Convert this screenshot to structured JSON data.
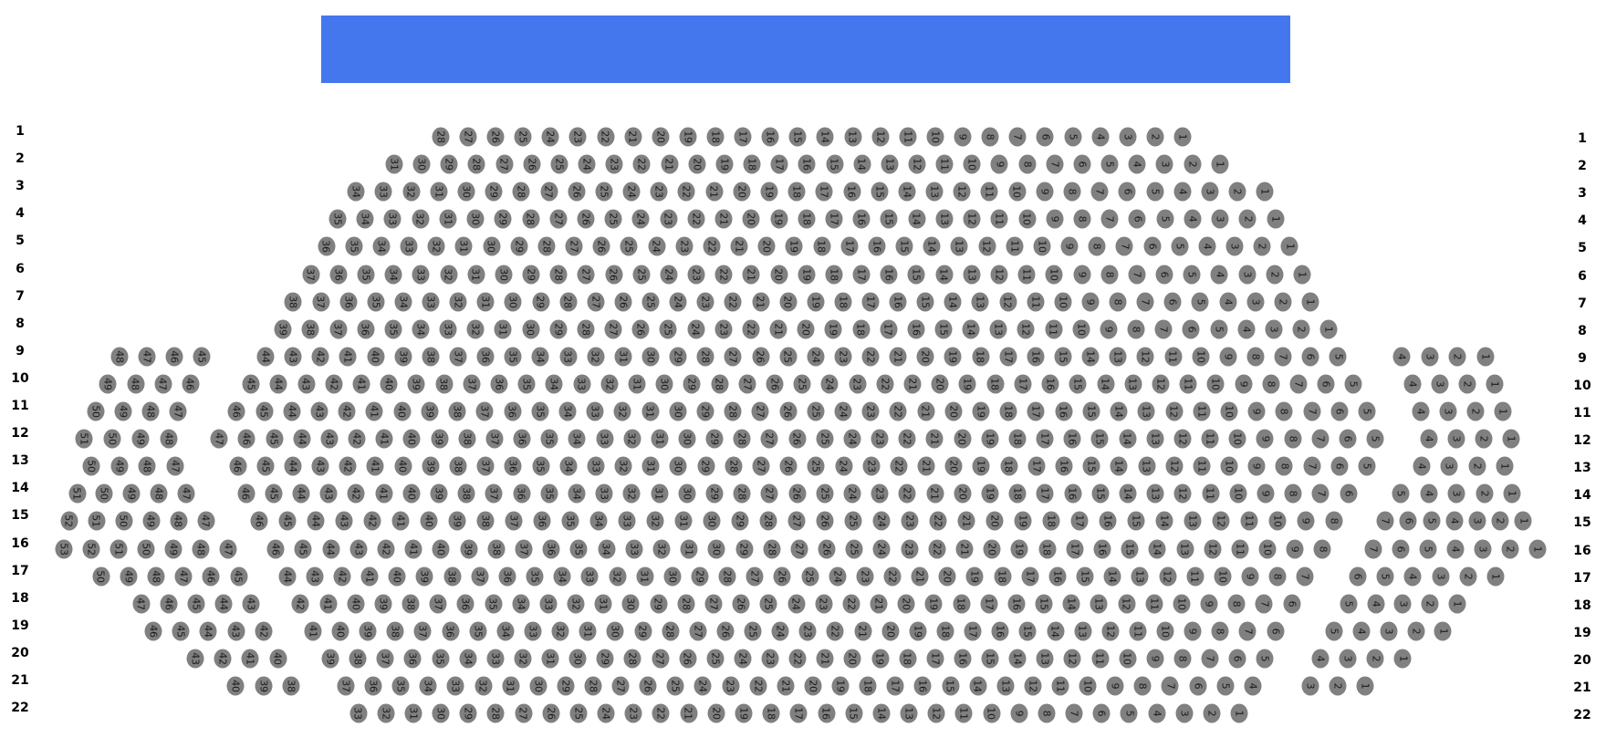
{
  "colors": {
    "stage": "#4477ee",
    "seat": "#808080",
    "seat_text": "#1a1a1a"
  },
  "rows": [
    {
      "label": "1",
      "sections": [
        {
          "from": 28,
          "to": 1
        }
      ]
    },
    {
      "label": "2",
      "sections": [
        {
          "from": 31,
          "to": 1
        }
      ]
    },
    {
      "label": "3",
      "sections": [
        {
          "from": 34,
          "to": 1
        }
      ]
    },
    {
      "label": "4",
      "sections": [
        {
          "from": 35,
          "to": 1
        }
      ]
    },
    {
      "label": "5",
      "sections": [
        {
          "from": 36,
          "to": 1
        }
      ]
    },
    {
      "label": "6",
      "sections": [
        {
          "from": 37,
          "to": 1
        }
      ]
    },
    {
      "label": "7",
      "sections": [
        {
          "from": 38,
          "to": 1
        }
      ]
    },
    {
      "label": "8",
      "sections": [
        {
          "from": 39,
          "to": 1
        }
      ]
    },
    {
      "label": "9",
      "sections": [
        {
          "from": 48,
          "to": 45
        },
        {
          "from": 44,
          "to": 5
        },
        {
          "from": 4,
          "to": 1
        }
      ]
    },
    {
      "label": "10",
      "sections": [
        {
          "from": 49,
          "to": 46
        },
        {
          "from": 45,
          "to": 5
        },
        {
          "from": 4,
          "to": 1
        }
      ]
    },
    {
      "label": "11",
      "sections": [
        {
          "from": 50,
          "to": 47
        },
        {
          "from": 46,
          "to": 5
        },
        {
          "from": 4,
          "to": 1
        }
      ]
    },
    {
      "label": "12",
      "sections": [
        {
          "from": 51,
          "to": 48
        },
        {
          "from": 47,
          "to": 5
        },
        {
          "from": 4,
          "to": 1
        }
      ]
    },
    {
      "label": "13",
      "sections": [
        {
          "from": 50,
          "to": 47
        },
        {
          "from": 46,
          "to": 5
        },
        {
          "from": 4,
          "to": 1
        }
      ]
    },
    {
      "label": "14",
      "sections": [
        {
          "from": 51,
          "to": 47
        },
        {
          "from": 46,
          "to": 6
        },
        {
          "from": 5,
          "to": 1
        }
      ]
    },
    {
      "label": "15",
      "sections": [
        {
          "from": 52,
          "to": 47
        },
        {
          "from": 46,
          "to": 8
        },
        {
          "from": 7,
          "to": 1
        }
      ]
    },
    {
      "label": "16",
      "sections": [
        {
          "from": 53,
          "to": 47
        },
        {
          "from": 46,
          "to": 8
        },
        {
          "from": 7,
          "to": 1
        }
      ]
    },
    {
      "label": "17",
      "sections": [
        {
          "from": 50,
          "to": 45
        },
        {
          "from": 44,
          "to": 7
        },
        {
          "from": 6,
          "to": 1
        }
      ]
    },
    {
      "label": "18",
      "sections": [
        {
          "from": 47,
          "to": 43
        },
        {
          "from": 42,
          "to": 6
        },
        {
          "from": 5,
          "to": 1
        }
      ]
    },
    {
      "label": "19",
      "sections": [
        {
          "from": 46,
          "to": 42
        },
        {
          "from": 41,
          "to": 6
        },
        {
          "from": 5,
          "to": 1
        }
      ]
    },
    {
      "label": "20",
      "sections": [
        {
          "from": 43,
          "to": 40
        },
        {
          "from": 39,
          "to": 5
        },
        {
          "from": 4,
          "to": 1
        }
      ]
    },
    {
      "label": "21",
      "sections": [
        {
          "from": 40,
          "to": 38
        },
        {
          "from": 37,
          "to": 4
        },
        {
          "from": 3,
          "to": 1
        }
      ]
    },
    {
      "label": "22",
      "sections": [
        {
          "from": 33,
          "to": 1
        }
      ]
    }
  ]
}
